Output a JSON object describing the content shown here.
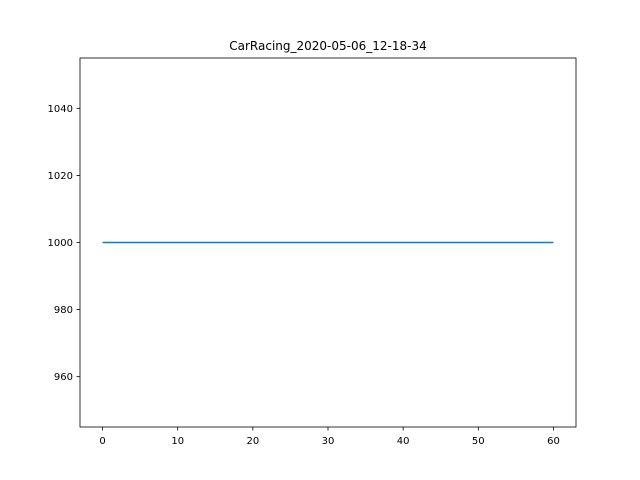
{
  "chart_data": {
    "type": "line",
    "title": "CarRacing_2020-05-06_12-18-34",
    "xlabel": "",
    "ylabel": "",
    "xlim": [
      -3,
      63
    ],
    "ylim": [
      945,
      1055
    ],
    "x_ticks": [
      0,
      10,
      20,
      30,
      40,
      50,
      60
    ],
    "y_ticks": [
      960,
      980,
      1000,
      1020,
      1040
    ],
    "grid": false,
    "legend": "none",
    "series": [
      {
        "color": "#1f77b4",
        "x": [
          0,
          60
        ],
        "y": [
          1000,
          1000
        ]
      }
    ]
  }
}
